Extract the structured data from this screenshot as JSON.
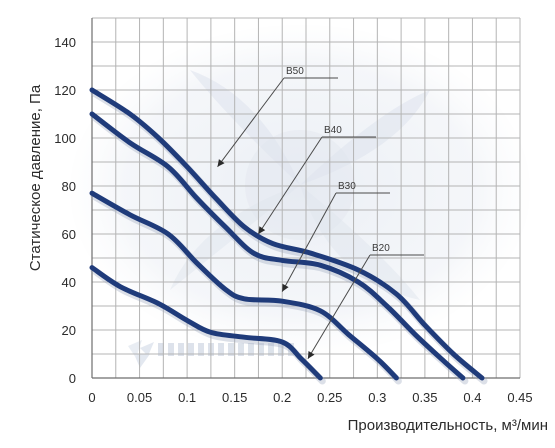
{
  "chart_data": {
    "type": "line",
    "title": "",
    "xlabel": "Производительность, м³/мин",
    "ylabel": "Статическое давление, Па",
    "xlim": [
      0,
      0.45
    ],
    "ylim": [
      0,
      150
    ],
    "xticks": [
      0,
      0.05,
      0.1,
      0.15,
      0.2,
      0.25,
      0.3,
      0.35,
      0.4,
      0.45
    ],
    "xtick_labels": [
      "0",
      "0.05",
      "0.1",
      "0.15",
      "0.2",
      "0.25",
      "0.3",
      "0.35",
      "0.4",
      "0.45"
    ],
    "yticks": [
      0,
      20,
      40,
      60,
      80,
      100,
      120,
      140
    ],
    "ytick_labels": [
      "0",
      "20",
      "40",
      "60",
      "80",
      "100",
      "120",
      "140"
    ],
    "grid": true,
    "line_color": "#1f3b7a",
    "series": [
      {
        "name": "B50",
        "x": [
          0,
          0.04,
          0.07,
          0.1,
          0.13,
          0.16,
          0.19,
          0.23,
          0.28,
          0.32,
          0.35,
          0.38,
          0.41
        ],
        "y": [
          120,
          110,
          100,
          88,
          75,
          63,
          56,
          52,
          45,
          35,
          22,
          10,
          0
        ]
      },
      {
        "name": "B40",
        "x": [
          0,
          0.04,
          0.08,
          0.11,
          0.14,
          0.17,
          0.2,
          0.24,
          0.28,
          0.31,
          0.34,
          0.37,
          0.39
        ],
        "y": [
          110,
          98,
          88,
          75,
          63,
          52,
          49,
          47,
          40,
          30,
          18,
          7,
          0
        ]
      },
      {
        "name": "B30",
        "x": [
          0,
          0.04,
          0.08,
          0.11,
          0.14,
          0.16,
          0.2,
          0.24,
          0.27,
          0.3,
          0.32
        ],
        "y": [
          77,
          68,
          60,
          48,
          37,
          33,
          32,
          28,
          18,
          8,
          0
        ]
      },
      {
        "name": "B20",
        "x": [
          0,
          0.03,
          0.07,
          0.1,
          0.125,
          0.16,
          0.2,
          0.22,
          0.24
        ],
        "y": [
          46,
          38,
          31,
          24,
          19,
          17,
          15,
          8,
          0
        ]
      }
    ],
    "annotations": [
      {
        "text": "B50",
        "target_x": 0.132,
        "target_y": 88
      },
      {
        "text": "B40",
        "target_x": 0.175,
        "target_y": 60
      },
      {
        "text": "B30",
        "target_x": 0.2,
        "target_y": 36
      },
      {
        "text": "B20",
        "target_x": 0.227,
        "target_y": 8
      }
    ]
  }
}
